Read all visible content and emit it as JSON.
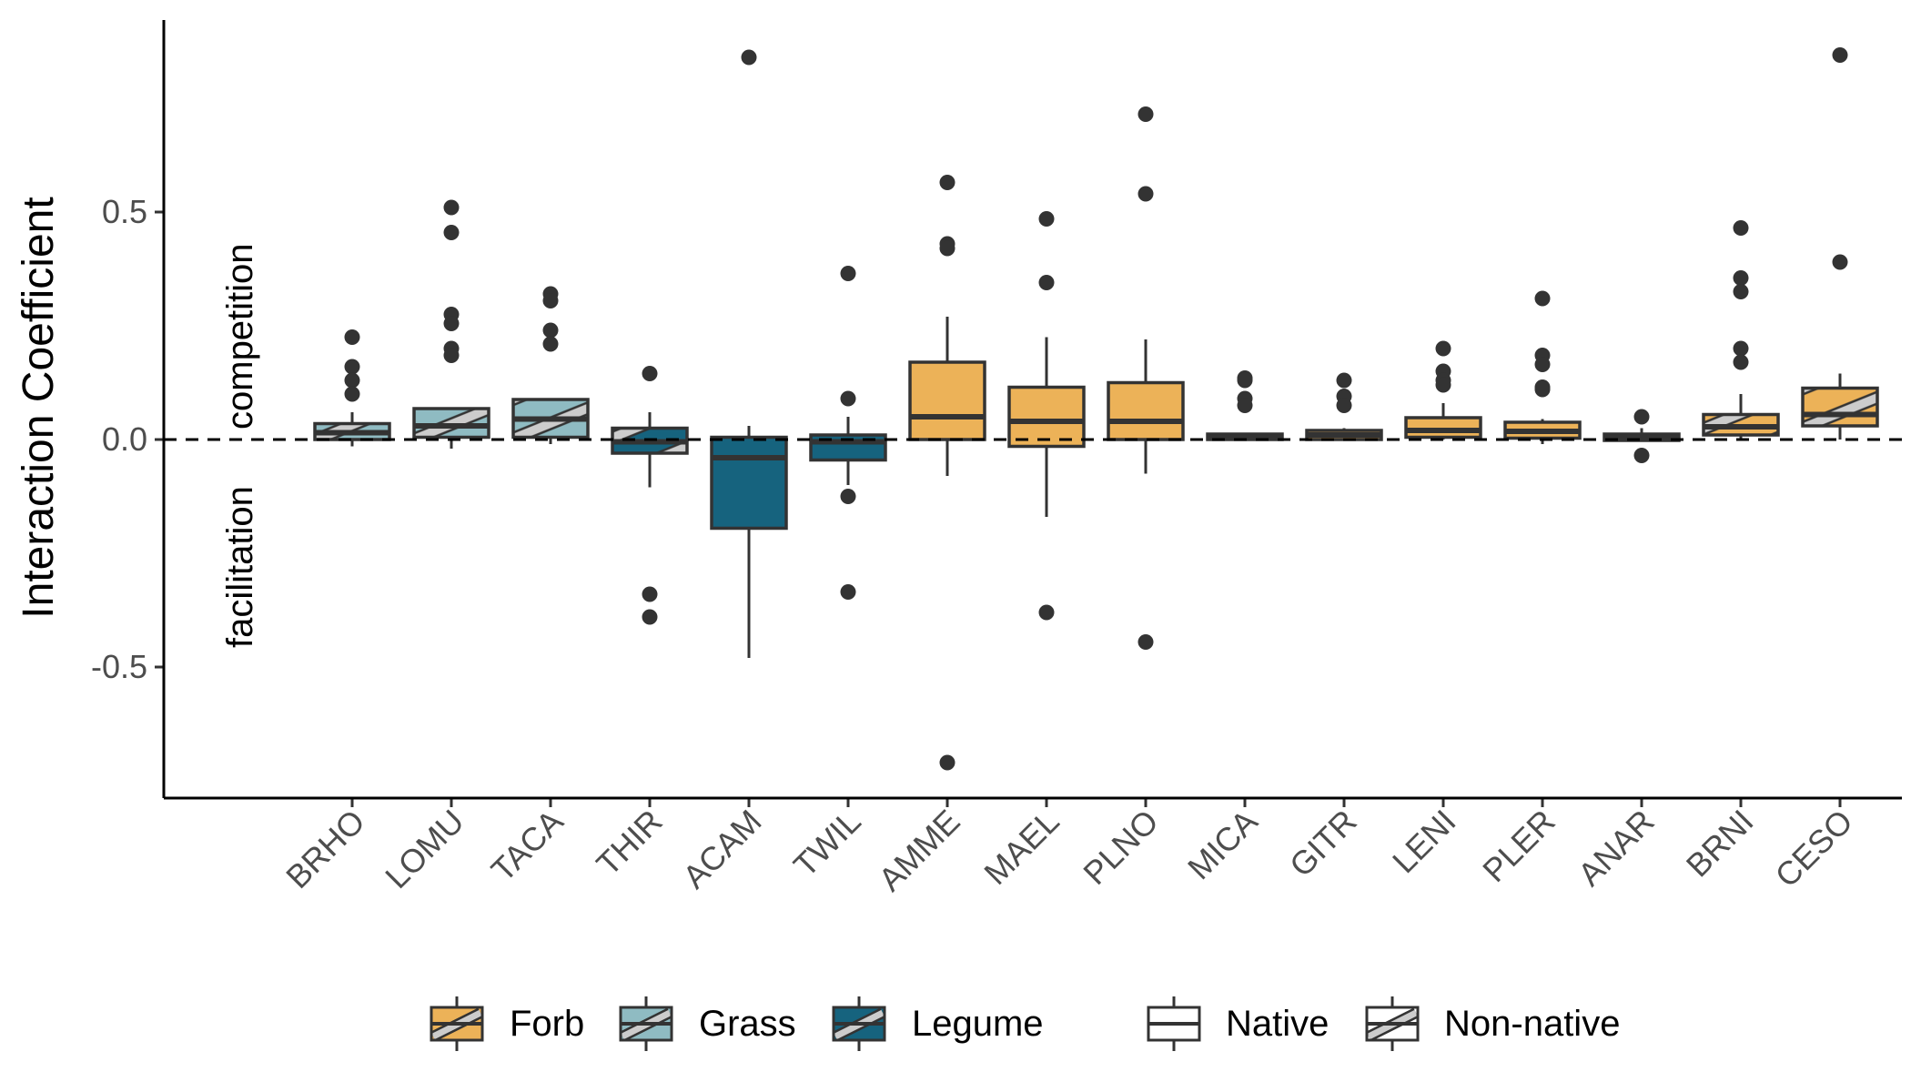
{
  "colors": {
    "Forb": "#ECB258",
    "Grass": "#8FBBC2",
    "Legume": "#16637E",
    "outline": "#333333",
    "hatch": "#cccccc",
    "outlier": "#333333"
  },
  "chart_data": {
    "type": "boxplot",
    "ylabel": "Interaction Coefficient",
    "xlabel": "",
    "ylim": [
      -0.78,
      0.92
    ],
    "yticks": [
      0.5,
      0.0,
      -0.5
    ],
    "ytick_labels": [
      "0.5",
      "0.0",
      "-0.5"
    ],
    "reference_line": 0.0,
    "annotations": {
      "above": "competition",
      "below": "facilitation"
    },
    "grid": false,
    "legend": {
      "position": "bottom",
      "fill": [
        {
          "label": "Forb",
          "group": "Forb"
        },
        {
          "label": "Grass",
          "group": "Grass"
        },
        {
          "label": "Legume",
          "group": "Legume"
        }
      ],
      "pattern": [
        {
          "label": "Native",
          "pattern": "none"
        },
        {
          "label": "Non-native",
          "pattern": "stripe"
        }
      ]
    },
    "categories": [
      "BRHO",
      "LOMU",
      "TACA",
      "THIR",
      "ACAM",
      "TWIL",
      "AMME",
      "MAEL",
      "PLNO",
      "MICA",
      "GITR",
      "LENI",
      "PLER",
      "ANAR",
      "BRNI",
      "CESO"
    ],
    "boxes": [
      {
        "species": "BRHO",
        "group": "Grass",
        "origin": "Non-native",
        "whisker_low": -0.015,
        "q1": 0.0,
        "median": 0.015,
        "q3": 0.035,
        "whisker_high": 0.06,
        "outliers": [
          0.225,
          0.16,
          0.13,
          0.1
        ]
      },
      {
        "species": "LOMU",
        "group": "Grass",
        "origin": "Non-native",
        "whisker_low": -0.02,
        "q1": 0.005,
        "median": 0.03,
        "q3": 0.068,
        "whisker_high": 0.068,
        "outliers": [
          0.51,
          0.455,
          0.275,
          0.255,
          0.2,
          0.185
        ]
      },
      {
        "species": "TACA",
        "group": "Grass",
        "origin": "Non-native",
        "whisker_low": -0.01,
        "q1": 0.005,
        "median": 0.045,
        "q3": 0.088,
        "whisker_high": 0.088,
        "outliers": [
          0.32,
          0.305,
          0.24,
          0.21
        ]
      },
      {
        "species": "THIR",
        "group": "Legume",
        "origin": "Non-native",
        "whisker_low": -0.105,
        "q1": -0.03,
        "median": -0.005,
        "q3": 0.025,
        "whisker_high": 0.06,
        "outliers": [
          0.145,
          -0.34,
          -0.39
        ]
      },
      {
        "species": "ACAM",
        "group": "Legume",
        "origin": "Native",
        "whisker_low": -0.48,
        "q1": -0.195,
        "median": -0.04,
        "q3": 0.005,
        "whisker_high": 0.03,
        "outliers": [
          0.84
        ]
      },
      {
        "species": "TWIL",
        "group": "Legume",
        "origin": "Native",
        "whisker_low": -0.1,
        "q1": -0.045,
        "median": -0.005,
        "q3": 0.01,
        "whisker_high": 0.05,
        "outliers": [
          0.365,
          0.09,
          -0.125,
          -0.335
        ]
      },
      {
        "species": "AMME",
        "group": "Forb",
        "origin": "Native",
        "whisker_low": -0.08,
        "q1": 0.0,
        "median": 0.05,
        "q3": 0.17,
        "whisker_high": 0.27,
        "outliers": [
          0.565,
          0.43,
          0.42,
          -0.71
        ]
      },
      {
        "species": "MAEL",
        "group": "Forb",
        "origin": "Native",
        "whisker_low": -0.17,
        "q1": -0.015,
        "median": 0.04,
        "q3": 0.115,
        "whisker_high": 0.225,
        "outliers": [
          0.485,
          0.345,
          -0.38
        ]
      },
      {
        "species": "PLNO",
        "group": "Forb",
        "origin": "Native",
        "whisker_low": -0.075,
        "q1": 0.0,
        "median": 0.04,
        "q3": 0.125,
        "whisker_high": 0.22,
        "outliers": [
          0.715,
          0.54,
          -0.445
        ]
      },
      {
        "species": "MICA",
        "group": "Forb",
        "origin": "Native",
        "whisker_low": 0.0,
        "q1": 0.0,
        "median": 0.005,
        "q3": 0.012,
        "whisker_high": 0.015,
        "outliers": [
          0.135,
          0.13,
          0.09,
          0.075
        ]
      },
      {
        "species": "GITR",
        "group": "Forb",
        "origin": "Native",
        "whisker_low": 0.0,
        "q1": 0.0,
        "median": 0.01,
        "q3": 0.02,
        "whisker_high": 0.025,
        "outliers": [
          0.13,
          0.095,
          0.075
        ]
      },
      {
        "species": "LENI",
        "group": "Forb",
        "origin": "Native",
        "whisker_low": 0.0,
        "q1": 0.005,
        "median": 0.02,
        "q3": 0.048,
        "whisker_high": 0.08,
        "outliers": [
          0.2,
          0.15,
          0.13,
          0.12
        ]
      },
      {
        "species": "PLER",
        "group": "Forb",
        "origin": "Native",
        "whisker_low": -0.01,
        "q1": 0.003,
        "median": 0.018,
        "q3": 0.038,
        "whisker_high": 0.045,
        "outliers": [
          0.31,
          0.185,
          0.165,
          0.115,
          0.11
        ]
      },
      {
        "species": "ANAR",
        "group": "Forb",
        "origin": "Native",
        "whisker_low": -0.005,
        "q1": -0.002,
        "median": 0.003,
        "q3": 0.012,
        "whisker_high": 0.025,
        "outliers": [
          0.05,
          -0.035
        ]
      },
      {
        "species": "BRNI",
        "group": "Forb",
        "origin": "Non-native",
        "whisker_low": 0.0,
        "q1": 0.01,
        "median": 0.028,
        "q3": 0.055,
        "whisker_high": 0.1,
        "outliers": [
          0.465,
          0.355,
          0.325,
          0.2,
          0.17
        ]
      },
      {
        "species": "CESO",
        "group": "Forb",
        "origin": "Non-native",
        "whisker_low": 0.0,
        "q1": 0.03,
        "median": 0.055,
        "q3": 0.113,
        "whisker_high": 0.145,
        "outliers": [
          0.845,
          0.39
        ]
      }
    ]
  }
}
